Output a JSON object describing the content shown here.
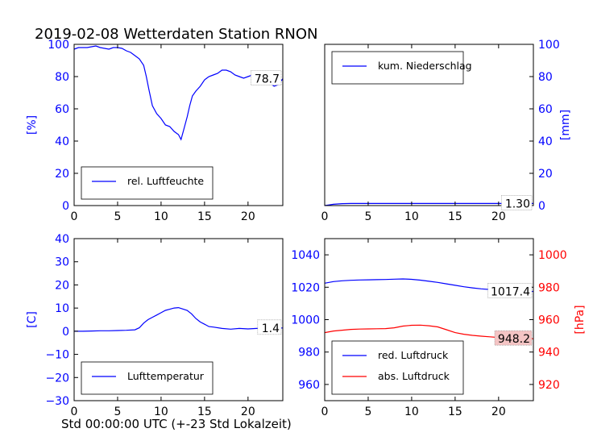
{
  "title": "2019-02-08 Wetterdaten Station RNON",
  "xlabel": "Std 00:00:00 UTC (+-23 Std Lokalzeit)",
  "colors": {
    "blue": "#0000ff",
    "red": "#ff0000",
    "black": "#000000"
  },
  "chart_data": [
    {
      "type": "line",
      "panel": "top-left",
      "ylabel": "[%]",
      "ylabel_side": "left",
      "xlim": [
        0,
        24
      ],
      "ylim": [
        0,
        100
      ],
      "xticks": [
        0,
        5,
        10,
        15,
        20
      ],
      "yticks": [
        0,
        20,
        40,
        60,
        80,
        100
      ],
      "legend_loc": "lower-left",
      "last_value_label": "78.7",
      "series": [
        {
          "name": "rel. Luftfeuchte",
          "color": "#0000ff",
          "x": [
            0,
            0.5,
            1,
            1.5,
            2,
            2.5,
            3,
            3.5,
            4,
            4.5,
            5,
            5.5,
            6,
            6.5,
            7,
            7.5,
            8,
            8.3,
            8.6,
            9,
            9.5,
            10,
            10.5,
            11,
            11.5,
            12,
            12.3,
            12.6,
            13,
            13.3,
            13.6,
            14,
            14.5,
            15,
            15.5,
            16,
            16.5,
            17,
            17.5,
            18,
            18.5,
            19,
            19.5,
            20,
            20.5,
            21,
            21.5,
            22,
            22.5,
            23,
            23.5,
            24
          ],
          "y": [
            97,
            98,
            98,
            98,
            98.5,
            99,
            98,
            97.5,
            97,
            98,
            98,
            97.5,
            96,
            95,
            93,
            91,
            87,
            80,
            72,
            62,
            57,
            54,
            50,
            49,
            46,
            44,
            41,
            47,
            55,
            62,
            68,
            71,
            74,
            78,
            80,
            81,
            82,
            84,
            84,
            83,
            81,
            80,
            79,
            80,
            81,
            79,
            78,
            77,
            76,
            74,
            75,
            78.7
          ]
        }
      ]
    },
    {
      "type": "line",
      "panel": "top-right",
      "ylabel": "[mm]",
      "ylabel_side": "right",
      "xlim": [
        0,
        24
      ],
      "ylim": [
        0,
        100
      ],
      "xticks": [
        0,
        5,
        10,
        15,
        20
      ],
      "yticks": [
        0,
        20,
        40,
        60,
        80,
        100
      ],
      "legend_loc": "upper-left",
      "last_value_label": "1.30",
      "series": [
        {
          "name": "kum. Niederschlag",
          "color": "#0000ff",
          "x": [
            0,
            0.5,
            1,
            1.5,
            2,
            3,
            5,
            10,
            15,
            20,
            24
          ],
          "y": [
            0,
            0.4,
            0.8,
            1.0,
            1.2,
            1.3,
            1.3,
            1.3,
            1.3,
            1.3,
            1.3
          ]
        }
      ]
    },
    {
      "type": "line",
      "panel": "bottom-left",
      "ylabel": "[C]",
      "ylabel_side": "left",
      "xlim": [
        0,
        24
      ],
      "ylim": [
        -30,
        40
      ],
      "xticks": [
        0,
        5,
        10,
        15,
        20
      ],
      "yticks": [
        -30,
        -20,
        -10,
        0,
        10,
        20,
        30,
        40
      ],
      "legend_loc": "lower-left",
      "last_value_label": "1.4",
      "series": [
        {
          "name": "Lufttemperatur",
          "color": "#0000ff",
          "x": [
            0,
            1,
            2,
            3,
            4,
            5,
            6,
            7,
            7.5,
            8,
            8.5,
            9,
            9.5,
            10,
            10.5,
            11,
            11.5,
            12,
            12.5,
            13,
            13.5,
            14,
            14.5,
            15,
            15.5,
            16,
            17,
            18,
            19,
            20,
            21,
            22,
            23,
            24
          ],
          "y": [
            0,
            0,
            0.1,
            0.2,
            0.2,
            0.3,
            0.4,
            0.6,
            1.5,
            3.5,
            5,
            6,
            7,
            8,
            9,
            9.5,
            10,
            10.2,
            9.6,
            9,
            7.5,
            5.5,
            4,
            3,
            2,
            1.8,
            1.2,
            0.9,
            1.2,
            1.0,
            1.2,
            1.3,
            1.3,
            1.4
          ]
        }
      ]
    },
    {
      "type": "line",
      "panel": "bottom-right",
      "xlim": [
        0,
        24
      ],
      "xticks": [
        0,
        5,
        10,
        15,
        20
      ],
      "left_axis": {
        "ylim": [
          950,
          1050
        ],
        "yticks": [
          960,
          980,
          1000,
          1020,
          1040
        ],
        "color": "#0000ff"
      },
      "right_axis": {
        "label": "[hPa]",
        "ylim": [
          910,
          1010
        ],
        "yticks": [
          920,
          940,
          960,
          980,
          1000
        ],
        "color": "#ff0000"
      },
      "legend_loc": "lower-left",
      "series": [
        {
          "name": "red. Luftdruck",
          "color": "#0000ff",
          "axis": "left",
          "last_value_label": "1017.4",
          "x": [
            0,
            1,
            2,
            3,
            4,
            5,
            6,
            7,
            8,
            9,
            10,
            11,
            12,
            13,
            14,
            15,
            16,
            17,
            18,
            19,
            20,
            21,
            22,
            23,
            24
          ],
          "y": [
            1022.5,
            1023.5,
            1024,
            1024.3,
            1024.5,
            1024.6,
            1024.7,
            1024.8,
            1025,
            1025.1,
            1024.9,
            1024.4,
            1023.7,
            1023,
            1022.1,
            1021.2,
            1020.3,
            1019.6,
            1019,
            1018.6,
            1018.2,
            1017.8,
            1017.5,
            1017.4,
            1017.4
          ]
        },
        {
          "name": "abs. Luftdruck",
          "color": "#ff0000",
          "axis": "right",
          "last_value_label": "948.2",
          "x": [
            0,
            1,
            2,
            3,
            4,
            5,
            6,
            7,
            8,
            9,
            10,
            11,
            12,
            13,
            14,
            15,
            16,
            17,
            18,
            19,
            20,
            21,
            22,
            23,
            24
          ],
          "y": [
            952,
            953,
            953.5,
            954,
            954.2,
            954.3,
            954.4,
            954.5,
            955,
            956,
            956.5,
            956.6,
            956.2,
            955.5,
            953.8,
            952,
            951,
            950.3,
            949.8,
            949.4,
            949,
            948.7,
            948.4,
            948.2,
            948.2
          ]
        }
      ]
    }
  ]
}
